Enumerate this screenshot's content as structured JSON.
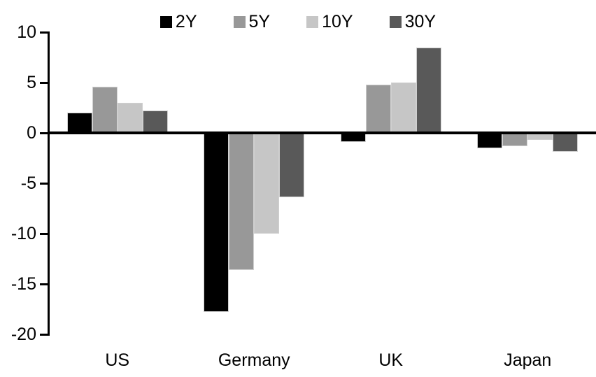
{
  "chart_data": {
    "type": "bar",
    "title": "",
    "xlabel": "",
    "ylabel": "",
    "categories": [
      "US",
      "Germany",
      "UK",
      "Japan"
    ],
    "series": [
      {
        "name": "2Y",
        "color": "#000000",
        "values": [
          2.0,
          -17.8,
          -0.9,
          -1.5
        ]
      },
      {
        "name": "5Y",
        "color": "#989898",
        "values": [
          4.6,
          -13.6,
          4.8,
          -1.3
        ]
      },
      {
        "name": "10Y",
        "color": "#c6c6c6",
        "values": [
          3.0,
          -10.0,
          5.0,
          -0.7
        ]
      },
      {
        "name": "30Y",
        "color": "#595959",
        "values": [
          2.2,
          -6.4,
          8.5,
          -1.9
        ]
      }
    ],
    "ylim": [
      -20,
      10
    ],
    "yticks": [
      10,
      5,
      0,
      -5,
      -10,
      -15,
      -20
    ],
    "legend_position": "top",
    "grid": false,
    "axis_color": "#000000",
    "background_color": "#ffffff"
  }
}
